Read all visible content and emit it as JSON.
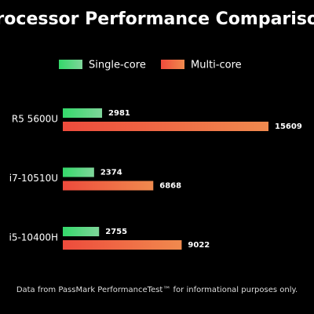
{
  "chart_data": {
    "type": "hbar",
    "title": "Processor Performance Comparison",
    "categories": [
      "R5 5600U",
      "i7-10510U",
      "i5-10400H"
    ],
    "series": [
      {
        "name": "Single-core",
        "color": "#34d86a",
        "values": [
          2981,
          2374,
          2755
        ]
      },
      {
        "name": "Multi-core",
        "color": "#ee4b3c",
        "values": [
          15609,
          6868,
          9022
        ]
      }
    ],
    "footnote": "Data from PassMark PerformanceTest™ for informational purposes only."
  }
}
